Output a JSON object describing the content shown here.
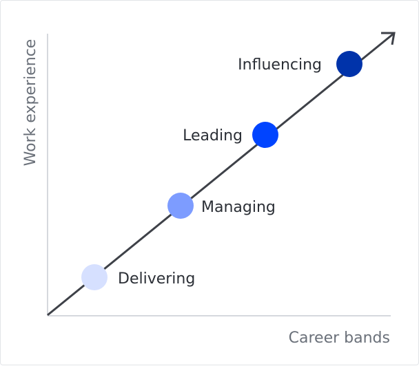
{
  "diagram": {
    "y_axis_label": "Work experience",
    "x_axis_label": "Career bands",
    "stages": [
      {
        "label": "Delivering",
        "color": "#d6e0ff"
      },
      {
        "label": "Managing",
        "color": "#7d9cff"
      },
      {
        "label": "Leading",
        "color": "#0044ff"
      },
      {
        "label": "Influencing",
        "color": "#0033aa"
      }
    ],
    "colors": {
      "axis": "#d5d8dd",
      "trend_line": "#3e4148"
    }
  }
}
